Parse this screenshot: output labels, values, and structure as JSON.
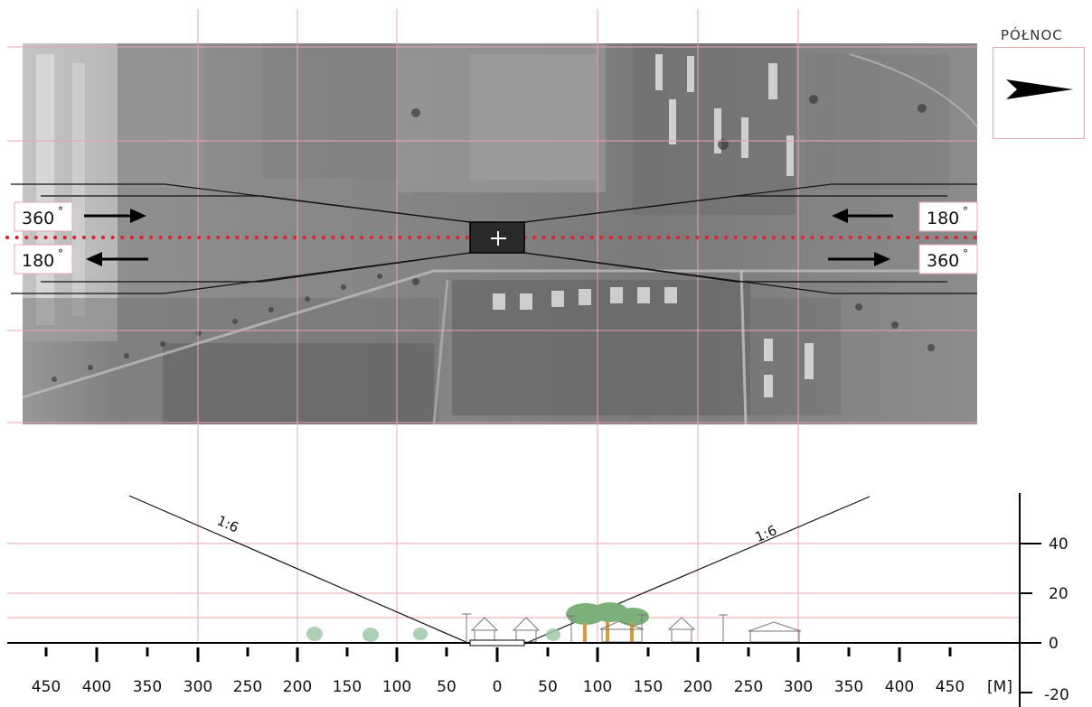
{
  "north": {
    "label": "PÓŁNOC",
    "arrow_icon": "north-arrow-icon"
  },
  "heading_labels": {
    "left_top": "360",
    "left_bottom": "180",
    "right_top": "180",
    "right_bottom": "360",
    "degree_symbol": "°"
  },
  "profile": {
    "slope_label_left": "1:6",
    "slope_label_right": "1:6",
    "x_ticks": [
      "450",
      "400",
      "350",
      "300",
      "250",
      "200",
      "150",
      "100",
      "50",
      "0",
      "50",
      "100",
      "150",
      "200",
      "250",
      "300",
      "350",
      "400",
      "450"
    ],
    "x_unit": "[M]",
    "y_ticks": [
      "40",
      "20",
      "0",
      "-20"
    ]
  },
  "colors": {
    "grid": "#e8a4b0",
    "centerline": "#e0202a",
    "photo_base": "#8a8a8a",
    "ink": "#111111"
  }
}
